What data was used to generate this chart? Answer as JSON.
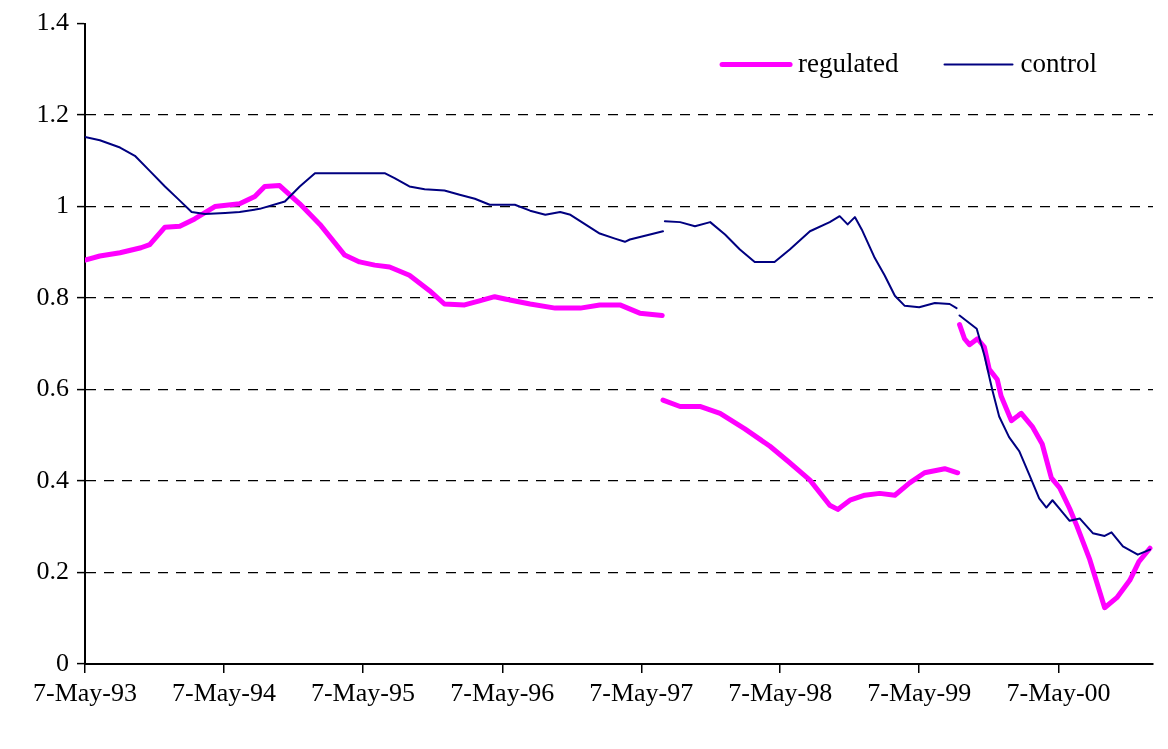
{
  "chart_data": {
    "type": "line",
    "legend": "top right",
    "grid": "y",
    "marker": "none",
    "line_style": "solid",
    "xlim": [
      "1993-05-07",
      "2001-01-10"
    ],
    "xticks": [
      {
        "value": "1993-05-07",
        "label": "7-May-93"
      },
      {
        "value": "1994-05-07",
        "label": "7-May-94"
      },
      {
        "value": "1995-05-07",
        "label": "7-May-95"
      },
      {
        "value": "1996-05-07",
        "label": "7-May-96"
      },
      {
        "value": "1997-05-07",
        "label": "7-May-97"
      },
      {
        "value": "1998-05-07",
        "label": "7-May-98"
      },
      {
        "value": "1999-05-07",
        "label": "7-May-99"
      },
      {
        "value": "2000-05-07",
        "label": "7-May-00"
      }
    ],
    "ylim": [
      0,
      1.4
    ],
    "yticks": [
      0,
      0.2,
      0.4,
      0.6,
      0.8,
      1,
      1.2,
      1.4
    ],
    "series": [
      {
        "name": "regulated",
        "color": "#ff00ff",
        "x": [
          "1993-05-07",
          "1993-06-15",
          "1993-08-07",
          "1993-10-01",
          "1993-10-24",
          "1993-12-03",
          "1994-01-11",
          "1994-02-19",
          "1994-04-13",
          "1994-06-17",
          "1994-07-27",
          "1994-08-22",
          "1994-09-30",
          "1994-11-22",
          "1995-01-14",
          "1995-03-20",
          "1995-04-28",
          "1995-06-07",
          "1995-07-16",
          "1995-09-06",
          "1995-10-29",
          "1995-12-07",
          "1996-01-29",
          "1996-03-08",
          "1996-04-17",
          "1996-05-14",
          "1996-07-19",
          "1996-09-23",
          "1996-11-28",
          "1997-01-18",
          "1997-03-12",
          "1997-05-03",
          "1997-07-01",
          "1997-07-02",
          "1997-07-03",
          "1997-08-17",
          "1997-10-08",
          "1997-11-30",
          "1998-02-03",
          "1998-04-10",
          "1998-06-01",
          "1998-07-24",
          "1998-09-14",
          "1998-10-05",
          "1998-11-06",
          "1998-12-15",
          "1999-01-23",
          "1999-03-04",
          "1999-04-12",
          "1999-05-21",
          "1999-07-13",
          "1999-08-16",
          "1999-08-18",
          "1999-08-21",
          "1999-09-03",
          "1999-09-16",
          "1999-10-07",
          "1999-10-25",
          "1999-11-07",
          "1999-11-28",
          "1999-12-08",
          "2000-01-04",
          "2000-01-30",
          "2000-02-28",
          "2000-03-25",
          "2000-04-18",
          "2000-05-10",
          "2000-06-05",
          "2000-06-24",
          "2000-07-28",
          "2000-09-05",
          "2000-10-07",
          "2000-11-10",
          "2000-12-04",
          "2001-01-02"
        ],
        "values": [
          0.883,
          0.892,
          0.899,
          0.91,
          0.917,
          0.955,
          0.957,
          0.973,
          1.0,
          1.006,
          1.022,
          1.044,
          1.046,
          1.006,
          0.961,
          0.894,
          0.879,
          0.872,
          0.868,
          0.85,
          0.816,
          0.787,
          0.785,
          0.794,
          0.803,
          0.798,
          0.787,
          0.778,
          0.778,
          0.785,
          0.785,
          0.767,
          0.762,
          null,
          0.577,
          0.563,
          0.563,
          0.548,
          0.514,
          0.476,
          0.44,
          0.402,
          0.347,
          0.338,
          0.358,
          0.369,
          0.373,
          0.369,
          0.396,
          0.418,
          0.427,
          0.418,
          null,
          0.742,
          0.711,
          0.698,
          0.711,
          0.693,
          0.644,
          0.622,
          0.586,
          0.532,
          0.548,
          0.519,
          0.481,
          0.407,
          0.385,
          0.34,
          0.302,
          0.228,
          0.123,
          0.145,
          0.183,
          0.224,
          0.253
        ]
      },
      {
        "name": "control",
        "color": "#000080",
        "x": [
          "1993-05-07",
          "1993-06-15",
          "1993-08-07",
          "1993-09-15",
          "1993-10-24",
          "1993-12-03",
          "1994-01-11",
          "1994-02-11",
          "1994-03-18",
          "1994-05-10",
          "1994-06-17",
          "1994-08-09",
          "1994-10-14",
          "1994-11-22",
          "1995-01-01",
          "1995-03-27",
          "1995-07-03",
          "1995-07-29",
          "1995-09-06",
          "1995-10-16",
          "1995-12-07",
          "1996-01-16",
          "1996-02-25",
          "1996-04-04",
          "1996-06-09",
          "1996-07-19",
          "1996-08-28",
          "1996-10-06",
          "1996-11-02",
          "1996-12-11",
          "1997-01-18",
          "1997-02-27",
          "1997-03-25",
          "1997-04-07",
          "1997-05-30",
          "1997-07-03",
          "1997-07-05",
          "1997-07-08",
          "1997-08-17",
          "1997-09-25",
          "1997-11-04",
          "1997-12-13",
          "1998-01-21",
          "1998-03-01",
          "1998-04-22",
          "1998-06-01",
          "1998-07-24",
          "1998-09-14",
          "1998-10-10",
          "1998-10-31",
          "1998-11-19",
          "1998-12-07",
          "1999-01-10",
          "1999-02-05",
          "1999-03-04",
          "1999-03-30",
          "1999-05-07",
          "1999-06-17",
          "1999-07-26",
          "1999-08-13",
          "1999-08-17",
          "1999-08-21",
          "1999-10-05",
          "1999-10-25",
          "1999-11-15",
          "1999-12-03",
          "1999-12-29",
          "2000-01-25",
          "2000-02-20",
          "2000-03-17",
          "2000-04-05",
          "2000-04-21",
          "2000-05-18",
          "2000-06-05",
          "2000-07-02",
          "2000-08-05",
          "2000-09-05",
          "2000-09-23",
          "2000-10-23",
          "2000-12-01",
          "2001-01-02"
        ],
        "values": [
          1.152,
          1.145,
          1.129,
          1.111,
          1.078,
          1.044,
          1.013,
          0.988,
          0.984,
          0.986,
          0.988,
          0.995,
          1.011,
          1.044,
          1.073,
          1.073,
          1.073,
          1.062,
          1.044,
          1.038,
          1.035,
          1.026,
          1.017,
          1.004,
          1.004,
          0.991,
          0.982,
          0.988,
          0.982,
          0.961,
          0.941,
          0.93,
          0.923,
          0.928,
          0.939,
          0.946,
          null,
          0.968,
          0.966,
          0.957,
          0.966,
          0.939,
          0.906,
          0.879,
          0.879,
          0.906,
          0.946,
          0.966,
          0.979,
          0.961,
          0.977,
          0.95,
          0.888,
          0.85,
          0.805,
          0.783,
          0.78,
          0.789,
          0.787,
          0.778,
          null,
          0.762,
          0.733,
          0.675,
          0.599,
          0.541,
          0.496,
          0.465,
          0.414,
          0.362,
          0.342,
          0.358,
          0.331,
          0.313,
          0.318,
          0.286,
          0.28,
          0.288,
          0.257,
          0.239,
          0.25
        ]
      }
    ]
  }
}
